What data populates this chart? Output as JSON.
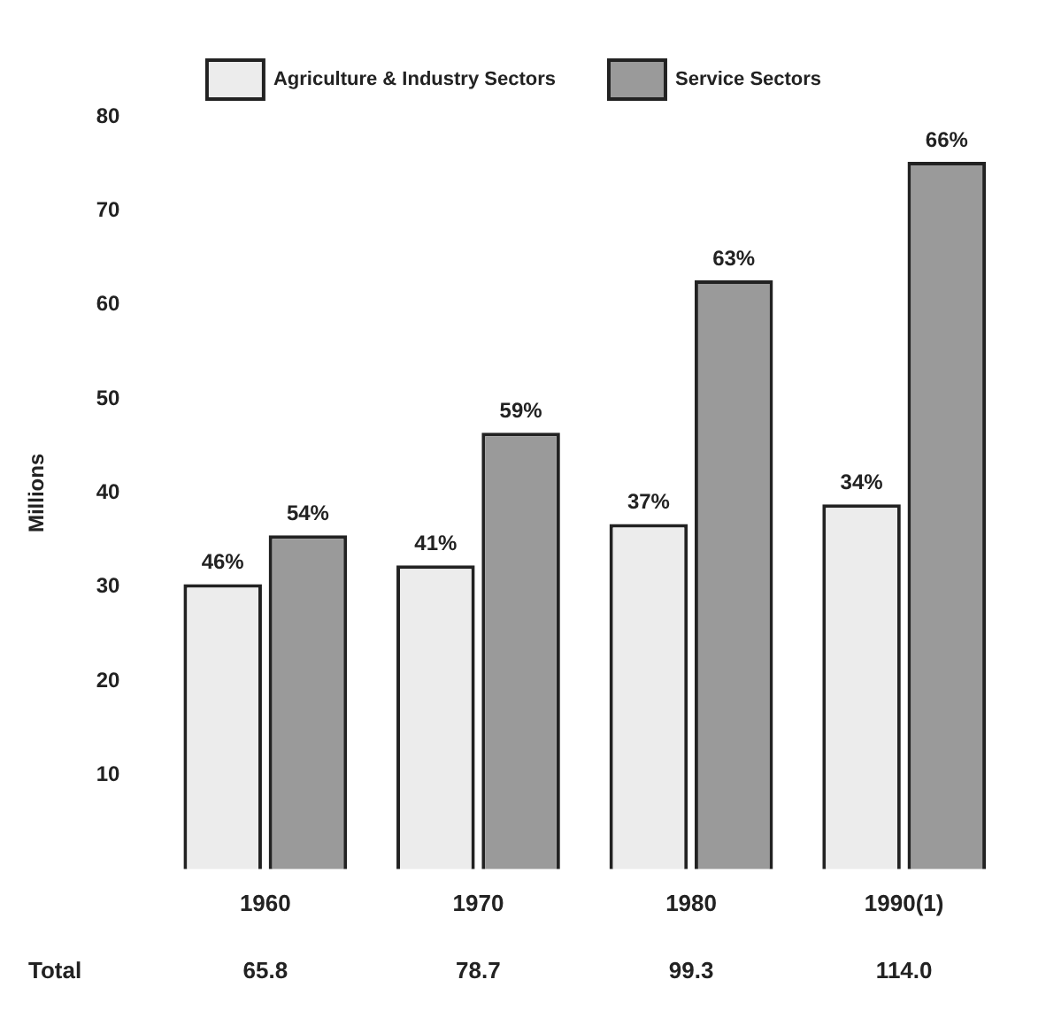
{
  "chart_data": {
    "type": "bar",
    "categories": [
      "1960",
      "1970",
      "1980",
      "1990(1)"
    ],
    "ylabel": "Millions",
    "ylim": [
      0,
      80
    ],
    "yticks": [
      10,
      20,
      30,
      40,
      50,
      60,
      70,
      80
    ],
    "grid": false,
    "legend": "top",
    "series": [
      {
        "name": "Agriculture & Industry Sectors",
        "color": "#ececec",
        "values": [
          30.3,
          32.3,
          36.7,
          38.8
        ]
      },
      {
        "name": "Service Sectors",
        "color": "#9a9a9a",
        "values": [
          35.5,
          46.4,
          62.6,
          75.2
        ]
      }
    ],
    "annotations": [
      {
        "text": "46%",
        "x": "1960",
        "y": 30.3
      },
      {
        "text": "41%",
        "x": "1970",
        "y": 32.3
      },
      {
        "text": "37%",
        "x": "1980",
        "y": 36.7
      },
      {
        "text": "34%",
        "x": "1990(1)",
        "y": 38.8
      },
      {
        "text": "54%",
        "x": "1960",
        "y": 35.5
      },
      {
        "text": "59%",
        "x": "1970",
        "y": 46.4
      },
      {
        "text": "63%",
        "x": "1980",
        "y": 62.6
      },
      {
        "text": "66%",
        "x": "1990(1)",
        "y": 75.2
      },
      "Total",
      "65.8",
      "78.7",
      "99.3",
      "114.0"
    ]
  }
}
